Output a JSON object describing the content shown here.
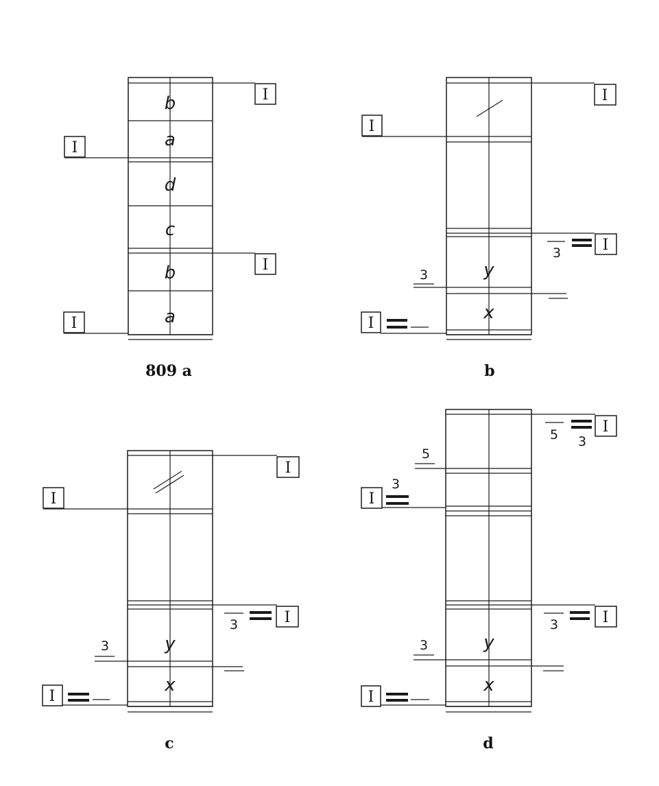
{
  "panels": {
    "a": {
      "caption": "809 a",
      "cells": [
        "b",
        "a",
        "d",
        "c",
        "b",
        "a"
      ],
      "boxes": [
        "I",
        "I",
        "I",
        "I"
      ]
    },
    "b": {
      "caption": "b",
      "mark": "/",
      "cells": [
        "y",
        "x"
      ],
      "boxes": [
        "I",
        "I",
        "I",
        "I"
      ],
      "numbers": [
        "3",
        "3"
      ]
    },
    "c": {
      "caption": "c",
      "mark": "//",
      "cells": [
        "y",
        "x"
      ],
      "boxes": [
        "I",
        "I",
        "I",
        "I"
      ],
      "numbers": [
        "3",
        "3"
      ]
    },
    "d": {
      "caption": "d",
      "cells": [
        "y",
        "x"
      ],
      "boxes": [
        "I",
        "I",
        "I",
        "I"
      ],
      "numbers": [
        "5",
        "3",
        "5",
        "3",
        "3",
        "3"
      ]
    }
  }
}
